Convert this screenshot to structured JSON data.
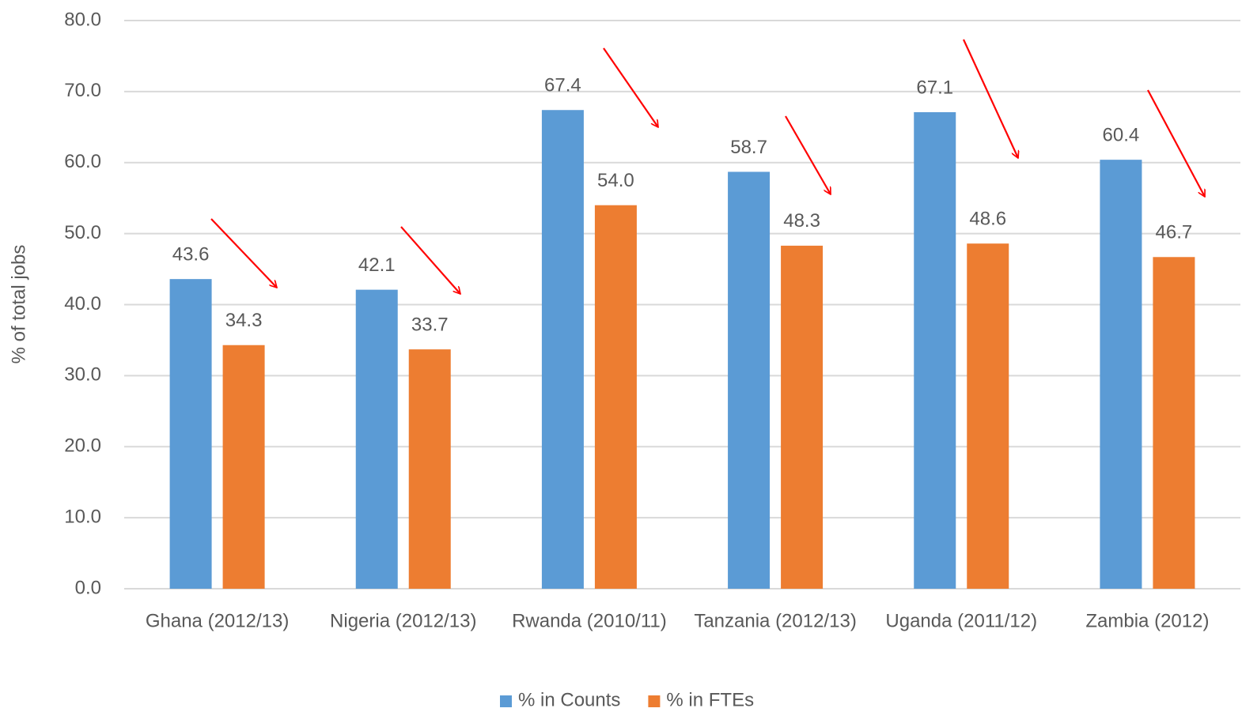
{
  "chart_data": {
    "type": "bar",
    "y_label": "% of total jobs",
    "categories": [
      "Ghana (2012/13)",
      "Nigeria (2012/13)",
      "Rwanda (2010/11)",
      "Tanzania (2012/13)",
      "Uganda (2011/12)",
      "Zambia (2012)"
    ],
    "series": [
      {
        "name": "% in Counts",
        "color": "#5b9bd5",
        "values": [
          43.6,
          42.1,
          67.4,
          58.7,
          67.1,
          60.4
        ],
        "value_labels": [
          "43.6",
          "42.1",
          "67.4",
          "58.7",
          "67.1",
          "60.4"
        ]
      },
      {
        "name": "% in FTEs",
        "color": "#ed7d31",
        "values": [
          34.3,
          33.7,
          54,
          48.3,
          48.6,
          46.7
        ],
        "value_labels": [
          "34.3",
          "33.7",
          "54.0",
          "48.3",
          "48.6",
          "46.7"
        ]
      }
    ],
    "ylim": [
      0,
      80
    ],
    "yticks": [
      {
        "value": 0,
        "label": "0.0"
      },
      {
        "value": 10,
        "label": "10.0"
      },
      {
        "value": 20,
        "label": "20.0"
      },
      {
        "value": 30,
        "label": "30.0"
      },
      {
        "value": 40,
        "label": "40.0"
      },
      {
        "value": 50,
        "label": "50.0"
      },
      {
        "value": 60,
        "label": "60.0"
      },
      {
        "value": 70,
        "label": "70.0"
      },
      {
        "value": 80,
        "label": "80.0"
      }
    ],
    "grid": true,
    "legend": "bottom"
  }
}
